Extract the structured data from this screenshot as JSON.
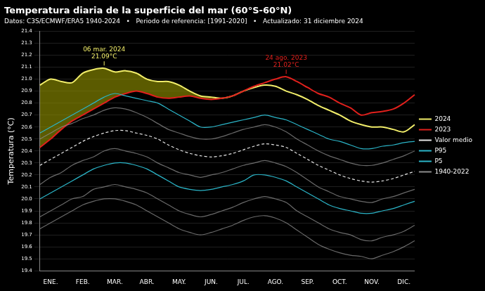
{
  "chart_data": {
    "type": "line",
    "title": "Temperatura diaria de la superficie del mar (60°S-60°N)",
    "subtitle": "Datos: C3S/ECMWF/ERA5 1940-2024   •   Periodo de referencia: [1991-2020]   •   Actualizado: 31 diciembre 2024",
    "y_label": "Temperatura (°C)",
    "categories": [
      null,
      "ENE.",
      null,
      null,
      "FEB.",
      null,
      null,
      "MAR.",
      null,
      null,
      "ABR.",
      null,
      null,
      "MAY.",
      null,
      null,
      "JUN.",
      null,
      null,
      "JUL.",
      null,
      null,
      "AGO.",
      null,
      null,
      "SEP.",
      null,
      null,
      "OCT.",
      null,
      null,
      "NOV.",
      null,
      null,
      "DIC.",
      null
    ],
    "ylim": [
      19.4,
      21.4
    ],
    "yticks": [
      19.4,
      19.5,
      19.6,
      19.7,
      19.8,
      19.9,
      {
        "value": 20,
        "label": "20.0"
      },
      20.1,
      20.2,
      20.3,
      20.4,
      20.5,
      20.6,
      20.7,
      20.8,
      20.9,
      {
        "value": 21,
        "label": "21.0"
      },
      21.1,
      21.2,
      21.3,
      21.4
    ],
    "grid": true,
    "legend": "right",
    "series": [
      {
        "name": "1940-2022",
        "color": "#8c8c8c",
        "line_style": "solid",
        "values": [
          19.75,
          19.8,
          19.85,
          19.9,
          19.95,
          19.98,
          20.0,
          20.0,
          19.98,
          19.95,
          19.9,
          19.85,
          19.8,
          19.75,
          19.72,
          19.7,
          19.72,
          19.75,
          19.78,
          19.82,
          19.85,
          19.86,
          19.84,
          19.8,
          19.74,
          19.68,
          19.62,
          19.58,
          19.55,
          19.53,
          19.52,
          19.5,
          19.53,
          19.56,
          19.6,
          19.65
        ]
      },
      {
        "name": "1940-2022",
        "color": "#8c8c8c",
        "line_style": "solid",
        "values": [
          19.85,
          19.9,
          19.95,
          20.0,
          20.02,
          20.08,
          20.1,
          20.12,
          20.1,
          20.08,
          20.05,
          20.0,
          19.95,
          19.9,
          19.87,
          19.85,
          19.87,
          19.9,
          19.93,
          19.97,
          20.0,
          20.02,
          20.0,
          19.97,
          19.9,
          19.85,
          19.8,
          19.75,
          19.72,
          19.7,
          19.66,
          19.65,
          19.68,
          19.7,
          19.73,
          19.78
        ]
      },
      {
        "name": "1940-2022",
        "color": "#8c8c8c",
        "line_style": "solid",
        "values": [
          20.12,
          20.18,
          20.22,
          20.28,
          20.32,
          20.35,
          20.4,
          20.42,
          20.4,
          20.38,
          20.35,
          20.3,
          20.26,
          20.22,
          20.2,
          20.18,
          20.2,
          20.22,
          20.25,
          20.28,
          20.3,
          20.32,
          20.3,
          20.27,
          20.22,
          20.16,
          20.1,
          20.06,
          20.02,
          20.0,
          19.98,
          19.97,
          20.0,
          20.02,
          20.05,
          20.08
        ]
      },
      {
        "name": "1940-2022",
        "color": "#8c8c8c",
        "line_style": "solid",
        "values": [
          20.5,
          20.55,
          20.6,
          20.63,
          20.67,
          20.7,
          20.74,
          20.76,
          20.75,
          20.72,
          20.68,
          20.63,
          20.58,
          20.55,
          20.52,
          20.5,
          20.5,
          20.52,
          20.55,
          20.58,
          20.6,
          20.62,
          20.6,
          20.56,
          20.5,
          20.45,
          20.4,
          20.36,
          20.33,
          20.3,
          20.28,
          20.28,
          20.3,
          20.33,
          20.36,
          20.4
        ]
      },
      {
        "name": "P5",
        "color": "#2bb5c8",
        "line_style": "solid",
        "values": [
          20.0,
          20.05,
          20.1,
          20.15,
          20.2,
          20.25,
          20.28,
          20.3,
          20.3,
          20.28,
          20.25,
          20.2,
          20.15,
          20.1,
          20.08,
          20.07,
          20.08,
          20.1,
          20.12,
          20.15,
          20.2,
          20.2,
          20.18,
          20.15,
          20.1,
          20.05,
          20.0,
          19.95,
          19.92,
          19.9,
          19.88,
          19.88,
          19.9,
          19.92,
          19.95,
          19.98
        ]
      },
      {
        "name": "P95",
        "color": "#2bb5c8",
        "line_style": "solid",
        "values": [
          20.55,
          20.6,
          20.65,
          20.7,
          20.75,
          20.8,
          20.85,
          20.88,
          20.86,
          20.84,
          20.82,
          20.8,
          20.75,
          20.7,
          20.65,
          20.6,
          20.6,
          20.62,
          20.64,
          20.66,
          20.68,
          20.7,
          20.68,
          20.66,
          20.62,
          20.58,
          20.54,
          20.5,
          20.48,
          20.45,
          20.42,
          20.42,
          20.44,
          20.45,
          20.47,
          20.48
        ]
      },
      {
        "name": "Valor medio",
        "color": "#e6e6e6",
        "line_style": "dashed",
        "values": [
          20.28,
          20.33,
          20.38,
          20.43,
          20.48,
          20.52,
          20.55,
          20.57,
          20.57,
          20.55,
          20.53,
          20.5,
          20.45,
          20.41,
          20.38,
          20.36,
          20.35,
          20.36,
          20.38,
          20.41,
          20.44,
          20.46,
          20.45,
          20.43,
          20.38,
          20.33,
          20.28,
          20.24,
          20.2,
          20.17,
          20.15,
          20.14,
          20.15,
          20.17,
          20.2,
          20.23
        ]
      },
      {
        "name": "2023",
        "color": "#e0201c",
        "line_style": "solid",
        "values": [
          20.43,
          20.5,
          20.58,
          20.65,
          20.7,
          20.75,
          20.8,
          20.85,
          20.88,
          20.9,
          20.88,
          20.85,
          20.84,
          20.85,
          20.86,
          20.84,
          20.83,
          20.84,
          20.86,
          20.9,
          20.94,
          20.97,
          21.0,
          21.02,
          20.98,
          20.93,
          20.88,
          20.85,
          20.8,
          20.76,
          20.7,
          20.72,
          20.73,
          20.75,
          20.8,
          20.87
        ]
      },
      {
        "name": "2024",
        "color": "#f2ee6a",
        "line_style": "solid",
        "values": [
          20.95,
          21.0,
          20.98,
          20.97,
          21.05,
          21.08,
          21.09,
          21.06,
          21.07,
          21.05,
          21.0,
          20.98,
          20.98,
          20.95,
          20.9,
          20.86,
          20.85,
          20.84,
          20.86,
          20.9,
          20.93,
          20.95,
          20.94,
          20.9,
          20.87,
          20.83,
          20.78,
          20.74,
          20.7,
          20.65,
          20.62,
          20.6,
          20.6,
          20.58,
          20.56,
          20.62
        ]
      }
    ],
    "annotations": [
      {
        "series": "2024",
        "text": "06 mar. 2024",
        "value": 21.09,
        "label": "21.09°C"
      },
      {
        "series": "2023",
        "text": "24 ago. 2023",
        "value": 21.02,
        "label": "21.02°C"
      }
    ]
  }
}
